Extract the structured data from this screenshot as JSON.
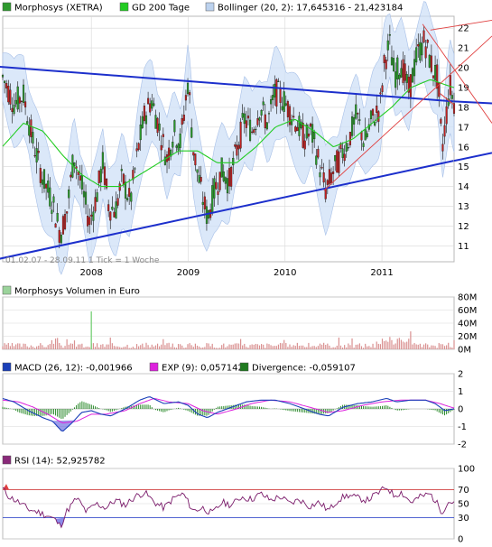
{
  "legend_main": [
    {
      "label": "Morphosys (XETRA)",
      "color": "#2f9a2f"
    },
    {
      "label": "GD 200 Tage",
      "color": "#22cc22"
    },
    {
      "label": "Bollinger (20, 2): 17,645316 - 21,423184",
      "color": "#bcd2ee"
    }
  ],
  "range_note": "01.02.07 - 28.09.11   1 Tick = 1 Woche",
  "x_years": [
    "2008",
    "2009",
    "2010",
    "2011"
  ],
  "volume_title": "Morphosys Volumen in Euro",
  "macd_legend": [
    {
      "label": "MACD (26, 12): -0,001966",
      "color": "#1a3fb8"
    },
    {
      "label": "EXP (9): 0,057142",
      "color": "#dd22dd"
    },
    {
      "label": "Divergence: -0,059107",
      "color": "#1f7a1f"
    }
  ],
  "rsi_title": "RSI (14): 52,925782",
  "colors": {
    "grid": "#d8d8d8",
    "up": "#2a9a2a",
    "down": "#c02020",
    "band": "#cfe0f7",
    "trend": "#1c2fcc",
    "sma": "#22cc22",
    "red_line": "#e04040",
    "volume": "#d99090",
    "rsi": "#7a1a6a"
  },
  "chart_data": [
    {
      "type": "candlestick",
      "name": "Morphosys (XETRA)",
      "x_range": [
        "2007-02-01",
        "2011-09-28"
      ],
      "y_ticks": [
        11,
        12,
        13,
        14,
        15,
        16,
        17,
        18,
        19,
        20,
        21,
        22
      ],
      "ylim": [
        10.2,
        22.6
      ],
      "x_ticks": [
        "2008",
        "2009",
        "2010",
        "2011"
      ],
      "close_path": [
        [
          2007.08,
          19.6
        ],
        [
          2007.2,
          18.2
        ],
        [
          2007.3,
          18.6
        ],
        [
          2007.4,
          16.2
        ],
        [
          2007.5,
          14.4
        ],
        [
          2007.6,
          13.2
        ],
        [
          2007.68,
          11.6
        ],
        [
          2007.75,
          12.8
        ],
        [
          2007.82,
          15.6
        ],
        [
          2007.9,
          14.0
        ],
        [
          2007.98,
          12.2
        ],
        [
          2008.05,
          13.4
        ],
        [
          2008.12,
          15.2
        ],
        [
          2008.18,
          13.0
        ],
        [
          2008.25,
          12.8
        ],
        [
          2008.32,
          14.4
        ],
        [
          2008.4,
          13.2
        ],
        [
          2008.48,
          15.8
        ],
        [
          2008.55,
          17.6
        ],
        [
          2008.62,
          18.4
        ],
        [
          2008.7,
          17.0
        ],
        [
          2008.78,
          15.4
        ],
        [
          2008.85,
          16.8
        ],
        [
          2008.92,
          16.2
        ],
        [
          2009.0,
          19.4
        ],
        [
          2009.05,
          16.0
        ],
        [
          2009.1,
          14.6
        ],
        [
          2009.15,
          13.4
        ],
        [
          2009.2,
          12.4
        ],
        [
          2009.27,
          13.8
        ],
        [
          2009.35,
          14.8
        ],
        [
          2009.42,
          14.2
        ],
        [
          2009.5,
          15.8
        ],
        [
          2009.58,
          17.4
        ],
        [
          2009.66,
          16.8
        ],
        [
          2009.74,
          18.0
        ],
        [
          2009.82,
          17.2
        ],
        [
          2009.9,
          18.8
        ],
        [
          2009.98,
          18.4
        ],
        [
          2010.05,
          17.8
        ],
        [
          2010.12,
          17.2
        ],
        [
          2010.2,
          16.4
        ],
        [
          2010.27,
          16.8
        ],
        [
          2010.34,
          15.4
        ],
        [
          2010.42,
          13.8
        ],
        [
          2010.5,
          14.8
        ],
        [
          2010.58,
          15.6
        ],
        [
          2010.66,
          16.4
        ],
        [
          2010.74,
          17.6
        ],
        [
          2010.82,
          16.2
        ],
        [
          2010.9,
          17.4
        ],
        [
          2010.98,
          18.0
        ],
        [
          2011.03,
          20.4
        ],
        [
          2011.08,
          21.2
        ],
        [
          2011.13,
          19.6
        ],
        [
          2011.2,
          20.2
        ],
        [
          2011.28,
          18.8
        ],
        [
          2011.36,
          20.6
        ],
        [
          2011.44,
          21.4
        ],
        [
          2011.52,
          20.0
        ],
        [
          2011.58,
          19.4
        ],
        [
          2011.62,
          15.8
        ],
        [
          2011.66,
          17.4
        ],
        [
          2011.7,
          19.2
        ],
        [
          2011.74,
          18.2
        ]
      ],
      "sma_200": [
        [
          2007.08,
          16.0
        ],
        [
          2007.3,
          17.2
        ],
        [
          2007.5,
          16.8
        ],
        [
          2007.7,
          15.6
        ],
        [
          2007.9,
          14.6
        ],
        [
          2008.1,
          14.0
        ],
        [
          2008.3,
          14.0
        ],
        [
          2008.5,
          14.6
        ],
        [
          2008.7,
          15.2
        ],
        [
          2008.9,
          15.8
        ],
        [
          2009.1,
          15.8
        ],
        [
          2009.3,
          15.2
        ],
        [
          2009.5,
          15.2
        ],
        [
          2009.7,
          16.0
        ],
        [
          2009.9,
          17.0
        ],
        [
          2010.1,
          17.4
        ],
        [
          2010.3,
          16.8
        ],
        [
          2010.5,
          16.0
        ],
        [
          2010.7,
          16.4
        ],
        [
          2010.9,
          17.2
        ],
        [
          2011.1,
          18.0
        ],
        [
          2011.3,
          19.0
        ],
        [
          2011.5,
          19.4
        ],
        [
          2011.74,
          19.0
        ]
      ],
      "trendlines": [
        {
          "from": [
            2007.05,
            20.05
          ],
          "to": [
            2011.74,
            18.3
          ],
          "color": "trend"
        },
        {
          "from": [
            2007.05,
            10.35
          ],
          "to": [
            2011.74,
            15.3
          ],
          "color": "trend"
        },
        {
          "from": [
            2011.6,
            18.7
          ],
          "to": [
            2011.74,
            18.15
          ],
          "color": "red_line"
        }
      ]
    },
    {
      "type": "bar",
      "name": "Volumen",
      "y_ticks": [
        "0M",
        "20M",
        "40M",
        "60M",
        "80M"
      ],
      "ylim": [
        0,
        80
      ],
      "spike": {
        "x": 2008.0,
        "value": 58
      }
    },
    {
      "type": "line",
      "name": "MACD",
      "y_ticks": [
        -2,
        -1,
        0,
        1,
        2
      ],
      "ylim": [
        -2,
        2
      ],
      "macd": [
        [
          2007.08,
          0.6
        ],
        [
          2007.2,
          0.4
        ],
        [
          2007.35,
          -0.1
        ],
        [
          2007.5,
          -0.5
        ],
        [
          2007.6,
          -0.7
        ],
        [
          2007.7,
          -1.3
        ],
        [
          2007.8,
          -0.8
        ],
        [
          2007.9,
          -0.2
        ],
        [
          2008.0,
          -0.1
        ],
        [
          2008.1,
          -0.3
        ],
        [
          2008.2,
          -0.4
        ],
        [
          2008.35,
          0.0
        ],
        [
          2008.5,
          0.5
        ],
        [
          2008.6,
          0.7
        ],
        [
          2008.75,
          0.3
        ],
        [
          2008.9,
          0.4
        ],
        [
          2009.0,
          0.2
        ],
        [
          2009.1,
          -0.3
        ],
        [
          2009.2,
          -0.5
        ],
        [
          2009.3,
          -0.2
        ],
        [
          2009.45,
          0.1
        ],
        [
          2009.6,
          0.4
        ],
        [
          2009.75,
          0.5
        ],
        [
          2009.9,
          0.5
        ],
        [
          2010.05,
          0.3
        ],
        [
          2010.2,
          0.0
        ],
        [
          2010.35,
          -0.3
        ],
        [
          2010.45,
          -0.4
        ],
        [
          2010.6,
          0.1
        ],
        [
          2010.75,
          0.3
        ],
        [
          2010.9,
          0.4
        ],
        [
          2011.05,
          0.6
        ],
        [
          2011.15,
          0.4
        ],
        [
          2011.3,
          0.5
        ],
        [
          2011.45,
          0.5
        ],
        [
          2011.55,
          0.3
        ],
        [
          2011.65,
          -0.1
        ],
        [
          2011.74,
          0.0
        ]
      ],
      "signal": [
        [
          2007.08,
          0.5
        ],
        [
          2007.25,
          0.4
        ],
        [
          2007.4,
          0.1
        ],
        [
          2007.55,
          -0.3
        ],
        [
          2007.7,
          -0.8
        ],
        [
          2007.85,
          -0.7
        ],
        [
          2008.0,
          -0.3
        ],
        [
          2008.15,
          -0.3
        ],
        [
          2008.35,
          -0.1
        ],
        [
          2008.5,
          0.3
        ],
        [
          2008.65,
          0.6
        ],
        [
          2008.8,
          0.4
        ],
        [
          2009.0,
          0.3
        ],
        [
          2009.15,
          -0.1
        ],
        [
          2009.3,
          -0.3
        ],
        [
          2009.5,
          0.0
        ],
        [
          2009.65,
          0.3
        ],
        [
          2009.85,
          0.5
        ],
        [
          2010.05,
          0.4
        ],
        [
          2010.25,
          0.1
        ],
        [
          2010.45,
          -0.2
        ],
        [
          2010.6,
          -0.1
        ],
        [
          2010.8,
          0.2
        ],
        [
          2011.0,
          0.4
        ],
        [
          2011.2,
          0.5
        ],
        [
          2011.45,
          0.5
        ],
        [
          2011.6,
          0.3
        ],
        [
          2011.74,
          0.05
        ]
      ]
    },
    {
      "type": "line",
      "name": "RSI (14)",
      "y_ticks": [
        0,
        30,
        50,
        70,
        100
      ],
      "ylim": [
        0,
        100
      ],
      "reference_lines": [
        30,
        70
      ],
      "rsi": [
        [
          2007.08,
          72
        ],
        [
          2007.15,
          60
        ],
        [
          2007.25,
          52
        ],
        [
          2007.35,
          42
        ],
        [
          2007.45,
          38
        ],
        [
          2007.55,
          33
        ],
        [
          2007.62,
          28
        ],
        [
          2007.68,
          18
        ],
        [
          2007.75,
          40
        ],
        [
          2007.85,
          58
        ],
        [
          2007.95,
          38
        ],
        [
          2008.05,
          50
        ],
        [
          2008.15,
          44
        ],
        [
          2008.25,
          55
        ],
        [
          2008.35,
          48
        ],
        [
          2008.45,
          60
        ],
        [
          2008.55,
          66
        ],
        [
          2008.65,
          52
        ],
        [
          2008.75,
          44
        ],
        [
          2008.85,
          58
        ],
        [
          2008.95,
          64
        ],
        [
          2009.05,
          40
        ],
        [
          2009.15,
          44
        ],
        [
          2009.25,
          36
        ],
        [
          2009.35,
          52
        ],
        [
          2009.45,
          48
        ],
        [
          2009.55,
          60
        ],
        [
          2009.65,
          56
        ],
        [
          2009.75,
          64
        ],
        [
          2009.85,
          55
        ],
        [
          2009.95,
          60
        ],
        [
          2010.05,
          50
        ],
        [
          2010.15,
          56
        ],
        [
          2010.25,
          46
        ],
        [
          2010.35,
          52
        ],
        [
          2010.45,
          40
        ],
        [
          2010.55,
          56
        ],
        [
          2010.65,
          62
        ],
        [
          2010.75,
          58
        ],
        [
          2010.85,
          55
        ],
        [
          2010.95,
          64
        ],
        [
          2011.05,
          74
        ],
        [
          2011.12,
          62
        ],
        [
          2011.2,
          66
        ],
        [
          2011.3,
          52
        ],
        [
          2011.4,
          60
        ],
        [
          2011.5,
          64
        ],
        [
          2011.58,
          48
        ],
        [
          2011.62,
          38
        ],
        [
          2011.68,
          52
        ],
        [
          2011.74,
          53
        ]
      ]
    }
  ]
}
